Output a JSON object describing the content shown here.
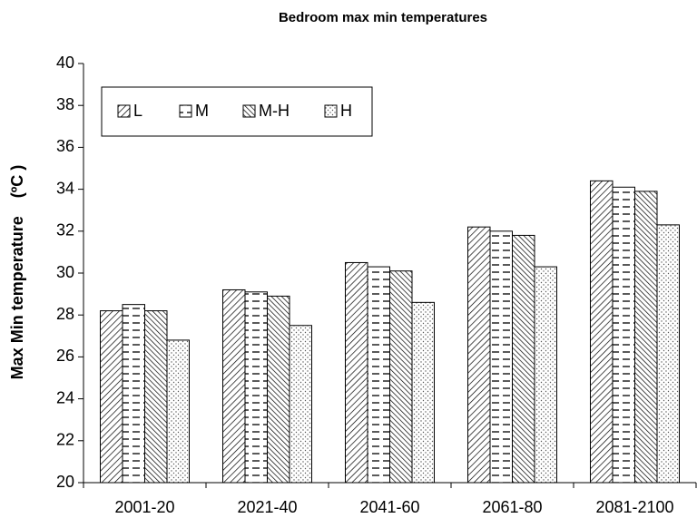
{
  "chart_data": {
    "type": "bar",
    "title": "Bedroom max min temperatures",
    "y_label": "Max Min temperature    (ºC )",
    "categories": [
      "2001-20",
      "2021-40",
      "2041-60",
      "2061-80",
      "2081-2100"
    ],
    "series": [
      {
        "name": "L",
        "color": "#000000",
        "pattern": "diag-up",
        "values": [
          28.2,
          29.2,
          30.5,
          32.2,
          34.4
        ]
      },
      {
        "name": "M",
        "color": "#000000",
        "pattern": "dashes",
        "values": [
          28.5,
          29.1,
          30.3,
          32.0,
          34.1
        ]
      },
      {
        "name": "M-H",
        "color": "#000000",
        "pattern": "diag-down",
        "values": [
          28.2,
          28.9,
          30.1,
          31.8,
          33.9
        ]
      },
      {
        "name": "H",
        "color": "#000000",
        "pattern": "dots",
        "values": [
          26.8,
          27.5,
          28.6,
          30.3,
          32.3
        ]
      }
    ],
    "ylim": [
      20,
      40
    ],
    "yticks": [
      20,
      22,
      24,
      26,
      28,
      30,
      32,
      34,
      36,
      38,
      40
    ],
    "grid": false,
    "legend": "top-left"
  }
}
